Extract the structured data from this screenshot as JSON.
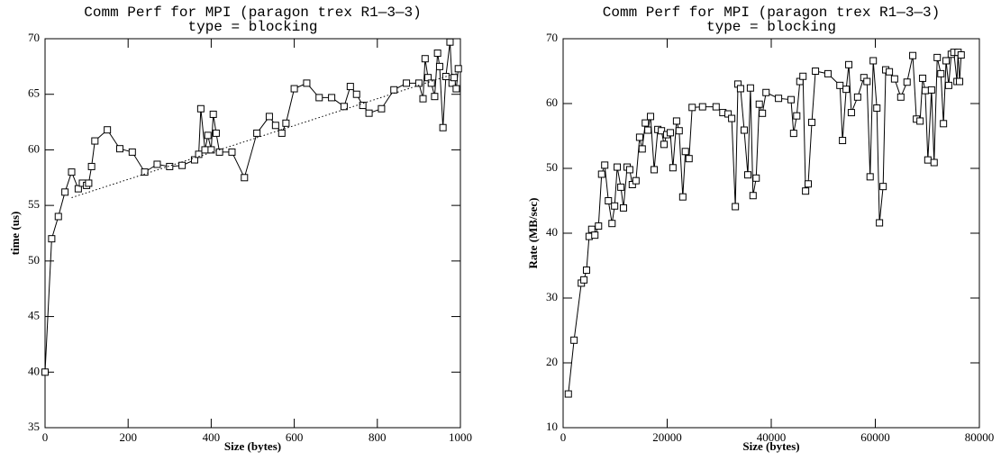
{
  "chart_data": [
    {
      "type": "line",
      "title": "Comm Perf for MPI (paragon  trex  R1—3—3)",
      "subtitle": "type = blocking",
      "xlabel": "Size (bytes)",
      "ylabel": "time (us)",
      "xlim": [
        0,
        1000
      ],
      "xticks": [
        0,
        200,
        400,
        600,
        800,
        1000
      ],
      "ylim": [
        35,
        70
      ],
      "yticks": [
        35,
        40,
        45,
        50,
        55,
        60,
        65,
        70
      ],
      "x": [
        0,
        16,
        32,
        48,
        64,
        80,
        90,
        100,
        105,
        112,
        120,
        150,
        180,
        210,
        240,
        270,
        300,
        330,
        360,
        370,
        375,
        385,
        392,
        400,
        405,
        412,
        420,
        450,
        480,
        510,
        540,
        555,
        570,
        580,
        600,
        630,
        660,
        690,
        720,
        735,
        750,
        765,
        780,
        810,
        840,
        870,
        900,
        910,
        915,
        922,
        930,
        938,
        945,
        950,
        958,
        965,
        975,
        980,
        985,
        990,
        995
      ],
      "series": [
        {
          "color": "#000000",
          "marker": "square",
          "values": [
            40,
            52,
            54,
            56.2,
            58,
            56.5,
            57,
            56.8,
            57,
            58.5,
            60.8,
            61.8,
            60.1,
            59.8,
            58,
            58.7,
            58.5,
            58.6,
            59.1,
            59.6,
            63.7,
            60,
            61.3,
            60,
            63.2,
            61.5,
            59.8,
            59.8,
            57.5,
            61.5,
            63,
            62.2,
            61.5,
            62.4,
            65.5,
            66,
            64.7,
            64.7,
            63.9,
            65.7,
            65,
            64,
            63.3,
            63.7,
            65.4,
            66,
            66,
            64.6,
            68.2,
            66.5,
            66,
            64.8,
            68.7,
            67.5,
            62,
            66.6,
            69.7,
            66,
            66.5,
            65.5,
            67.3
          ]
        },
        {
          "color": "#000000",
          "dash": "dotted",
          "x": [
            64,
            990
          ],
          "values": [
            55.7,
            66.9
          ]
        }
      ]
    },
    {
      "type": "line",
      "title": "Comm Perf for MPI (paragon  trex  R1—3—3)",
      "subtitle": "type = blocking",
      "xlabel": "Size (bytes)",
      "ylabel": "Rate (MB/sec)",
      "xlim": [
        0,
        80000
      ],
      "xticks": [
        0,
        20000,
        40000,
        60000,
        80000
      ],
      "ylim": [
        10,
        70
      ],
      "yticks": [
        10,
        20,
        30,
        40,
        50,
        60,
        70
      ],
      "x": [
        1000,
        2100,
        3500,
        4000,
        4500,
        5000,
        5500,
        6100,
        6800,
        7400,
        8000,
        8700,
        9400,
        9900,
        10400,
        11100,
        11600,
        12300,
        12800,
        13300,
        14000,
        14700,
        15200,
        15800,
        16300,
        16800,
        17500,
        18200,
        18900,
        19400,
        19900,
        20600,
        21100,
        21800,
        22300,
        23000,
        23500,
        24200,
        24800,
        26800,
        29400,
        30700,
        31700,
        32400,
        33100,
        33600,
        34100,
        34800,
        35500,
        36000,
        36500,
        37100,
        37700,
        38300,
        39000,
        41400,
        43800,
        44300,
        44900,
        45500,
        46100,
        46600,
        47100,
        47800,
        48500,
        50900,
        53200,
        53700,
        54400,
        54900,
        55400,
        56600,
        57800,
        58400,
        59000,
        59600,
        60300,
        60800,
        61500,
        62000,
        62700,
        63700,
        64900,
        66100,
        67200,
        67900,
        68600,
        69100,
        69600,
        70100,
        70800,
        71300,
        71900,
        72600,
        73100,
        73600,
        74100,
        74600,
        75100,
        75700,
        75900,
        76200,
        76500
      ],
      "series": [
        {
          "color": "#000000",
          "marker": "square",
          "values": [
            15.2,
            23.5,
            32.3,
            32.8,
            34.3,
            39.5,
            40.6,
            39.7,
            41.1,
            49.1,
            50.5,
            45,
            41.5,
            44.2,
            50.2,
            47.1,
            43.9,
            50.2,
            49.8,
            47.5,
            48.1,
            54.8,
            53,
            57,
            55.9,
            58,
            49.8,
            56,
            55.8,
            53.7,
            55.2,
            55.5,
            50.1,
            57.3,
            55.8,
            45.6,
            52.6,
            51.5,
            59.4,
            59.5,
            59.5,
            58.6,
            58.4,
            57.7,
            44.1,
            63,
            62.3,
            55.9,
            49,
            62.4,
            45.8,
            48.5,
            59.9,
            58.5,
            61.7,
            60.8,
            60.6,
            55.4,
            58.1,
            63.4,
            64.2,
            46.5,
            47.6,
            57.1,
            65,
            64.6,
            62.8,
            54.3,
            62.2,
            66,
            58.6,
            61,
            64,
            63.4,
            48.7,
            66.6,
            59.3,
            41.6,
            47.2,
            65.2,
            64.9,
            63.8,
            61,
            63.3,
            67.4,
            57.6,
            57.3,
            63.9,
            62,
            51.3,
            62.1,
            50.9,
            67.1,
            64.6,
            56.9,
            66.6,
            62.8,
            67.6,
            67.9,
            63.4,
            67.9,
            63.4,
            67.5
          ]
        }
      ]
    }
  ]
}
